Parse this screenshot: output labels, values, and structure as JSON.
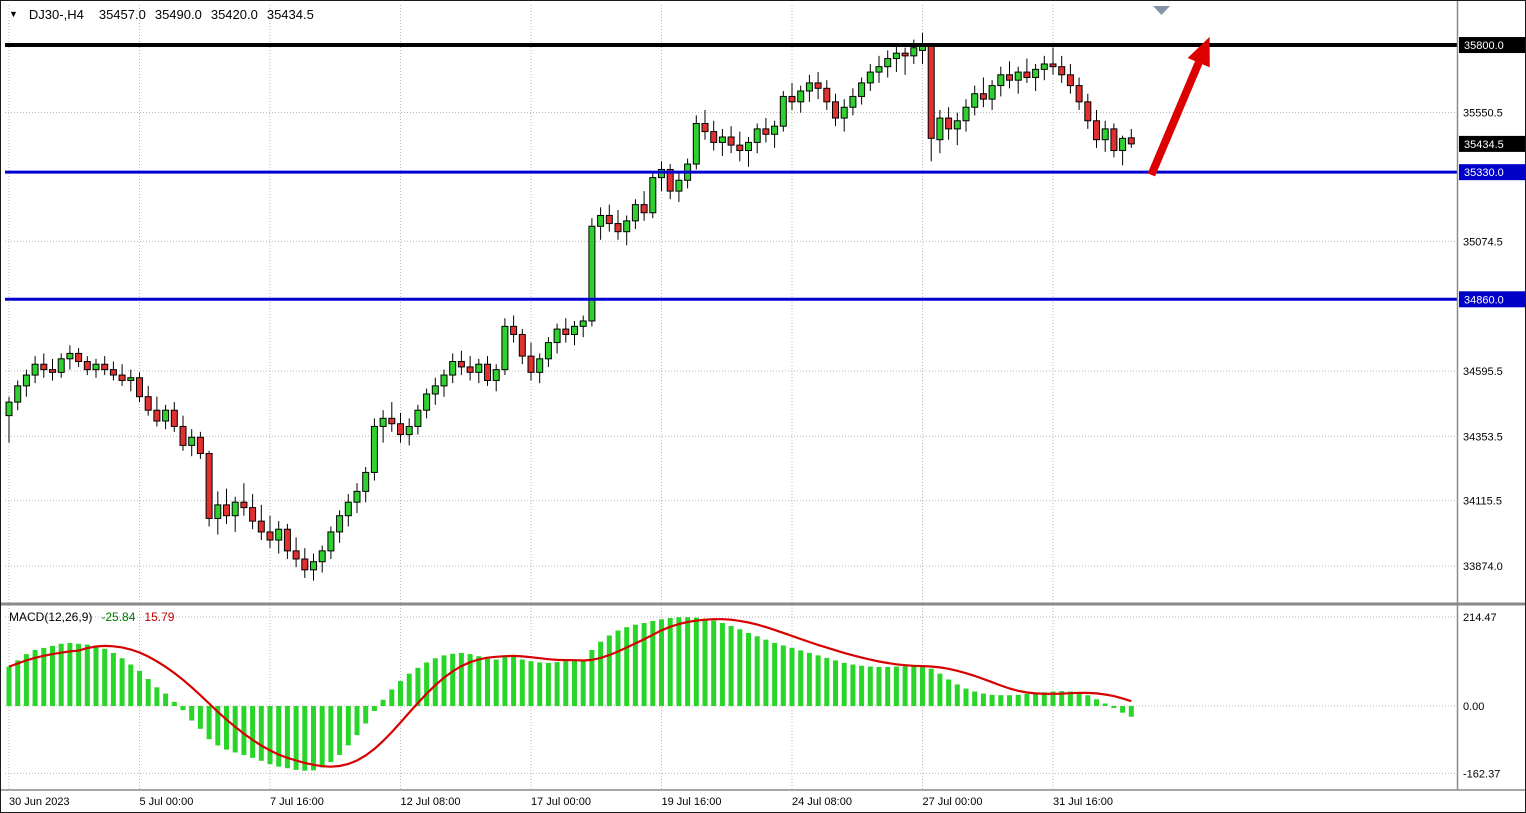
{
  "header": {
    "symbol_period": "DJ30-,H4",
    "open": "35457.0",
    "high": "35490.0",
    "low": "35420.0",
    "close": "35434.5"
  },
  "macd_header": {
    "label": "MACD(12,26,9)",
    "main_value": "-25.84",
    "signal_value": "15.79"
  },
  "colors": {
    "background": "#FFFFFF",
    "up": "#30D030",
    "down": "#E03030",
    "outline": "#000000",
    "histogram": "#2AD52A",
    "signal": "#D60000",
    "grid": "#B8B8B8",
    "level_blue": "#0000D0",
    "level_black": "#000000",
    "label_box_blue": "#0000C8",
    "label_box_black": "#000000",
    "arrow": "#DD0000",
    "divider": "#8A8A8A",
    "shift_marker": "#8593A6"
  },
  "chart_data": {
    "type": "candlestick",
    "symbol": "DJ30-",
    "timeframe": "H4",
    "price_range": {
      "min": 33741,
      "max": 35948
    },
    "time_ticks": [
      {
        "index": 0,
        "label": "30 Jun 2023"
      },
      {
        "index": 15,
        "label": "5 Jul 00:00"
      },
      {
        "index": 30,
        "label": "7 Jul 16:00"
      },
      {
        "index": 45,
        "label": "12 Jul 08:00"
      },
      {
        "index": 60,
        "label": "17 Jul 00:00"
      },
      {
        "index": 75,
        "label": "19 Jul 16:00"
      },
      {
        "index": 90,
        "label": "24 Jul 08:00"
      },
      {
        "index": 105,
        "label": "27 Jul 00:00"
      },
      {
        "index": 120,
        "label": "31 Jul 16:00"
      }
    ],
    "price_grid_labels": [
      {
        "value": 35550.5,
        "text": "35550.5"
      },
      {
        "value": 35074.5,
        "text": "35074.5"
      },
      {
        "value": 34595.5,
        "text": "34595.5"
      },
      {
        "value": 34353.5,
        "text": "34353.5"
      },
      {
        "value": 34115.5,
        "text": "34115.5"
      },
      {
        "value": 33874.0,
        "text": "33874.0"
      }
    ],
    "scale_markers": [
      {
        "value": 35800.0,
        "text": "35800.0",
        "bg": "#000000"
      },
      {
        "value": 35434.5,
        "text": "35434.5",
        "bg": "#000000"
      },
      {
        "value": 35330.0,
        "text": "35330.0",
        "bg": "#0000C8"
      },
      {
        "value": 34860.0,
        "text": "34860.0",
        "bg": "#0000C8"
      }
    ],
    "levels": [
      {
        "price": 35800.0,
        "color": "#000000",
        "width": 4,
        "name": "resistance-line"
      },
      {
        "price": 35330.0,
        "color": "#0000D0",
        "width": 3,
        "name": "support-line-upper"
      },
      {
        "price": 34860.0,
        "color": "#0000D0",
        "width": 3,
        "name": "support-line-lower"
      }
    ],
    "arrow": {
      "from_index": 131.3,
      "from_price": 35320,
      "to_index": 138,
      "to_price": 35830,
      "color": "#DD0000",
      "width": 8
    },
    "candles": [
      [
        34430,
        34500,
        34330,
        34480
      ],
      [
        34480,
        34560,
        34450,
        34540
      ],
      [
        34540,
        34600,
        34500,
        34580
      ],
      [
        34580,
        34650,
        34550,
        34620
      ],
      [
        34620,
        34660,
        34570,
        34600
      ],
      [
        34600,
        34640,
        34560,
        34590
      ],
      [
        34590,
        34660,
        34570,
        34640
      ],
      [
        34640,
        34690,
        34600,
        34660
      ],
      [
        34660,
        34680,
        34610,
        34630
      ],
      [
        34630,
        34650,
        34580,
        34600
      ],
      [
        34600,
        34640,
        34570,
        34620
      ],
      [
        34620,
        34650,
        34580,
        34600
      ],
      [
        34600,
        34630,
        34560,
        34580
      ],
      [
        34580,
        34620,
        34540,
        34560
      ],
      [
        34560,
        34600,
        34520,
        34570
      ],
      [
        34570,
        34590,
        34480,
        34500
      ],
      [
        34500,
        34540,
        34430,
        34450
      ],
      [
        34450,
        34500,
        34390,
        34410
      ],
      [
        34410,
        34470,
        34380,
        34450
      ],
      [
        34450,
        34480,
        34370,
        34390
      ],
      [
        34390,
        34430,
        34300,
        34320
      ],
      [
        34320,
        34380,
        34280,
        34350
      ],
      [
        34350,
        34370,
        34270,
        34290
      ],
      [
        34290,
        34300,
        34020,
        34050
      ],
      [
        34050,
        34150,
        33990,
        34100
      ],
      [
        34100,
        34160,
        34030,
        34060
      ],
      [
        34060,
        34130,
        34000,
        34110
      ],
      [
        34110,
        34180,
        34060,
        34090
      ],
      [
        34090,
        34140,
        34010,
        34040
      ],
      [
        34040,
        34100,
        33970,
        34000
      ],
      [
        34000,
        34060,
        33940,
        33970
      ],
      [
        33970,
        34040,
        33920,
        34010
      ],
      [
        34010,
        34030,
        33900,
        33930
      ],
      [
        33930,
        33980,
        33870,
        33900
      ],
      [
        33900,
        33940,
        33830,
        33860
      ],
      [
        33860,
        33920,
        33820,
        33890
      ],
      [
        33890,
        33950,
        33850,
        33930
      ],
      [
        33930,
        34020,
        33900,
        34000
      ],
      [
        34000,
        34080,
        33960,
        34060
      ],
      [
        34060,
        34140,
        34020,
        34110
      ],
      [
        34110,
        34180,
        34070,
        34150
      ],
      [
        34150,
        34240,
        34110,
        34220
      ],
      [
        34220,
        34420,
        34190,
        34390
      ],
      [
        34390,
        34450,
        34330,
        34420
      ],
      [
        34420,
        34480,
        34370,
        34400
      ],
      [
        34400,
        34440,
        34330,
        34360
      ],
      [
        34360,
        34420,
        34320,
        34390
      ],
      [
        34390,
        34470,
        34360,
        34450
      ],
      [
        34450,
        34530,
        34420,
        34510
      ],
      [
        34510,
        34570,
        34470,
        34540
      ],
      [
        34540,
        34600,
        34500,
        34580
      ],
      [
        34580,
        34660,
        34550,
        34630
      ],
      [
        34630,
        34670,
        34580,
        34610
      ],
      [
        34610,
        34650,
        34560,
        34590
      ],
      [
        34590,
        34640,
        34550,
        34620
      ],
      [
        34620,
        34650,
        34540,
        34560
      ],
      [
        34560,
        34620,
        34520,
        34600
      ],
      [
        34600,
        34790,
        34580,
        34760
      ],
      [
        34760,
        34800,
        34700,
        34730
      ],
      [
        34730,
        34750,
        34620,
        34650
      ],
      [
        34650,
        34700,
        34560,
        34590
      ],
      [
        34590,
        34660,
        34550,
        34640
      ],
      [
        34640,
        34720,
        34610,
        34700
      ],
      [
        34700,
        34770,
        34660,
        34750
      ],
      [
        34750,
        34790,
        34700,
        34730
      ],
      [
        34730,
        34780,
        34690,
        34760
      ],
      [
        34760,
        34800,
        34720,
        34780
      ],
      [
        34780,
        35160,
        34760,
        35130
      ],
      [
        35130,
        35200,
        35080,
        35170
      ],
      [
        35170,
        35210,
        35110,
        35140
      ],
      [
        35140,
        35190,
        35080,
        35110
      ],
      [
        35110,
        35170,
        35060,
        35150
      ],
      [
        35150,
        35230,
        35120,
        35210
      ],
      [
        35210,
        35260,
        35150,
        35180
      ],
      [
        35180,
        35330,
        35160,
        35310
      ],
      [
        35310,
        35370,
        35260,
        35340
      ],
      [
        35340,
        35360,
        35230,
        35260
      ],
      [
        35260,
        35330,
        35220,
        35300
      ],
      [
        35300,
        35380,
        35270,
        35360
      ],
      [
        35360,
        35540,
        35340,
        35510
      ],
      [
        35510,
        35560,
        35450,
        35480
      ],
      [
        35480,
        35520,
        35410,
        35440
      ],
      [
        35440,
        35490,
        35390,
        35460
      ],
      [
        35460,
        35500,
        35400,
        35430
      ],
      [
        35430,
        35480,
        35370,
        35410
      ],
      [
        35410,
        35460,
        35350,
        35440
      ],
      [
        35440,
        35510,
        35400,
        35490
      ],
      [
        35490,
        35530,
        35440,
        35470
      ],
      [
        35470,
        35520,
        35420,
        35500
      ],
      [
        35500,
        35630,
        35480,
        35610
      ],
      [
        35610,
        35660,
        35560,
        35590
      ],
      [
        35590,
        35650,
        35550,
        35630
      ],
      [
        35630,
        35690,
        35590,
        35660
      ],
      [
        35660,
        35700,
        35600,
        35640
      ],
      [
        35640,
        35670,
        35560,
        35590
      ],
      [
        35590,
        35620,
        35500,
        35530
      ],
      [
        35530,
        35600,
        35480,
        35570
      ],
      [
        35570,
        35640,
        35540,
        35610
      ],
      [
        35610,
        35680,
        35580,
        35660
      ],
      [
        35660,
        35730,
        35630,
        35700
      ],
      [
        35700,
        35760,
        35660,
        35720
      ],
      [
        35720,
        35780,
        35680,
        35750
      ],
      [
        35750,
        35800,
        35700,
        35770
      ],
      [
        35770,
        35790,
        35690,
        35760
      ],
      [
        35760,
        35820,
        35730,
        35790
      ],
      [
        35780,
        35845,
        35730,
        35800
      ],
      [
        35795,
        35805,
        35370,
        35455
      ],
      [
        35450,
        35560,
        35400,
        35530
      ],
      [
        35530,
        35570,
        35450,
        35490
      ],
      [
        35490,
        35550,
        35430,
        35520
      ],
      [
        35520,
        35600,
        35480,
        35570
      ],
      [
        35570,
        35650,
        35540,
        35620
      ],
      [
        35620,
        35680,
        35570,
        35600
      ],
      [
        35600,
        35670,
        35560,
        35650
      ],
      [
        35650,
        35720,
        35610,
        35690
      ],
      [
        35690,
        35740,
        35640,
        35670
      ],
      [
        35670,
        35720,
        35620,
        35700
      ],
      [
        35700,
        35750,
        35660,
        35680
      ],
      [
        35680,
        35730,
        35630,
        35710
      ],
      [
        35710,
        35760,
        35670,
        35730
      ],
      [
        35730,
        35790,
        35690,
        35720
      ],
      [
        35720,
        35760,
        35660,
        35690
      ],
      [
        35690,
        35730,
        35620,
        35650
      ],
      [
        35650,
        35680,
        35560,
        35590
      ],
      [
        35590,
        35620,
        35490,
        35520
      ],
      [
        35520,
        35560,
        35420,
        35450
      ],
      [
        35450,
        35520,
        35405,
        35490
      ],
      [
        35490,
        35510,
        35385,
        35410
      ],
      [
        35410,
        35465,
        35355,
        35455
      ],
      [
        35457,
        35490,
        35420,
        35434.5
      ]
    ],
    "macd": {
      "params": "12,26,9",
      "signal_period": 9,
      "range": {
        "min": -200,
        "max": 238.6
      },
      "grid_labels": [
        {
          "value": 214.47,
          "text": "214.47"
        },
        {
          "value": 0,
          "text": "0.00"
        },
        {
          "value": -162.37,
          "text": "-162.37"
        }
      ],
      "values": [
        95,
        110,
        125,
        135,
        140,
        145,
        150,
        152,
        150,
        148,
        145,
        138,
        128,
        115,
        100,
        85,
        65,
        45,
        30,
        10,
        -10,
        -35,
        -55,
        -80,
        -95,
        -105,
        -112,
        -118,
        -125,
        -132,
        -140,
        -146,
        -150,
        -154,
        -156,
        -155,
        -148,
        -135,
        -118,
        -95,
        -70,
        -42,
        -12,
        15,
        40,
        60,
        78,
        92,
        105,
        115,
        122,
        126,
        128,
        125,
        120,
        114,
        112,
        118,
        122,
        112,
        108,
        105,
        104,
        106,
        108,
        110,
        112,
        135,
        155,
        170,
        182,
        190,
        196,
        200,
        205,
        209,
        212,
        214,
        214,
        213,
        210,
        206,
        200,
        193,
        185,
        176,
        168,
        160,
        152,
        146,
        140,
        134,
        128,
        122,
        116,
        110,
        104,
        100,
        97,
        95,
        94,
        94,
        95,
        96,
        97,
        98,
        90,
        78,
        64,
        52,
        42,
        35,
        30,
        27,
        26,
        26,
        27,
        29,
        31,
        33,
        35,
        36,
        35,
        32,
        26,
        16,
        6,
        -5,
        -16,
        -25.84
      ]
    }
  }
}
